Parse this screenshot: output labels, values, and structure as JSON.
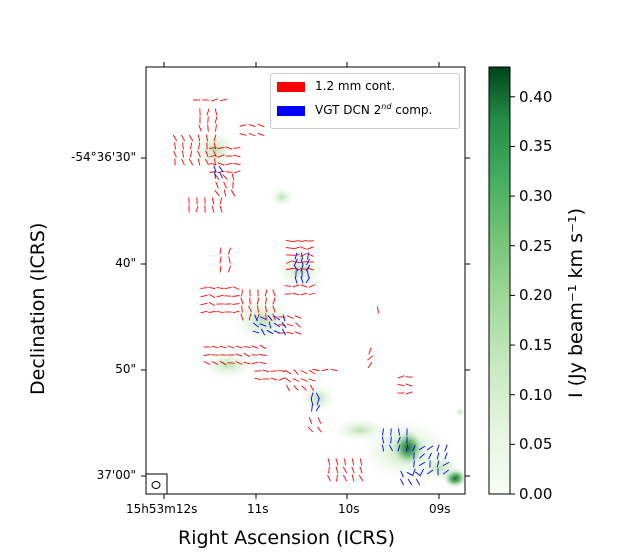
{
  "chart_data": {
    "type": "map",
    "xlabel": "Right Ascension (ICRS)",
    "ylabel": "Declination (ICRS)",
    "x_ticks": [
      "15h53m12s",
      "11s",
      "10s",
      "09s"
    ],
    "y_ticks": [
      "-54°36'30\"",
      "40\"",
      "50\"",
      "37'00\""
    ],
    "legend": [
      {
        "label": "1.2 mm cont.",
        "color": "#ff0000"
      },
      {
        "label": "VGT DCN 2nd comp.",
        "color": "#0000ff"
      }
    ],
    "colorbar": {
      "label": "I (Jy beam⁻¹ km s⁻¹)",
      "min": 0.0,
      "max": 0.43,
      "ticks": [
        "0.00",
        "0.05",
        "0.10",
        "0.15",
        "0.20",
        "0.25",
        "0.30",
        "0.35",
        "0.40"
      ],
      "colormap": "Greens"
    },
    "beam_marker": "ellipse",
    "colors": {
      "red": "#ff0000",
      "blue": "#0000ff",
      "green_dark": "#00441b",
      "green_light": "#f7fcf5"
    }
  },
  "legend_labels": {
    "cont": "1.2 mm cont.",
    "vgt_prefix": "VGT DCN 2",
    "vgt_sup": "nd",
    "vgt_suffix": " comp."
  }
}
